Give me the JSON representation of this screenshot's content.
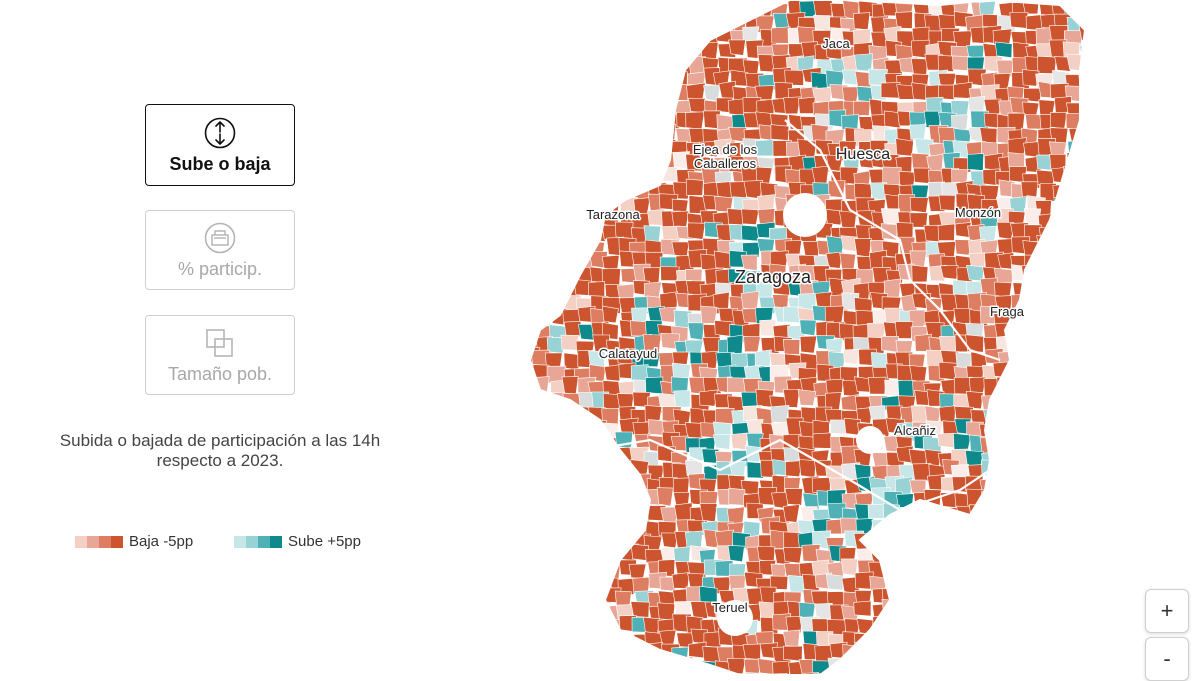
{
  "modes": [
    {
      "label": "Sube o baja",
      "icon": "up-down-arrows-icon",
      "active": true
    },
    {
      "label": "% particip.",
      "icon": "ballot-box-icon",
      "active": false
    },
    {
      "label": "Tamaño pob.",
      "icon": "overlapping-squares-icon",
      "active": false
    }
  ],
  "description": "Subida o bajada de participación a las 14h respecto a 2023.",
  "legend": {
    "baja": {
      "label": "Baja -5pp",
      "colors": [
        "#f3cfc4",
        "#e8a796",
        "#dd7e62",
        "#cc5530"
      ]
    },
    "sube": {
      "label": "Sube +5pp",
      "colors": [
        "#c6e6e8",
        "#98d2d4",
        "#4fb1b5",
        "#0e8a8d"
      ]
    }
  },
  "map": {
    "cities": [
      "Jaca",
      "Ejea de los",
      "Caballeros",
      "Huesca",
      "Tarazona",
      "Monzón",
      "Zaragoza",
      "Fraga",
      "Calatayud",
      "Alcañiz",
      "Teruel"
    ]
  },
  "zoom": {
    "in": "+",
    "out": "-"
  }
}
